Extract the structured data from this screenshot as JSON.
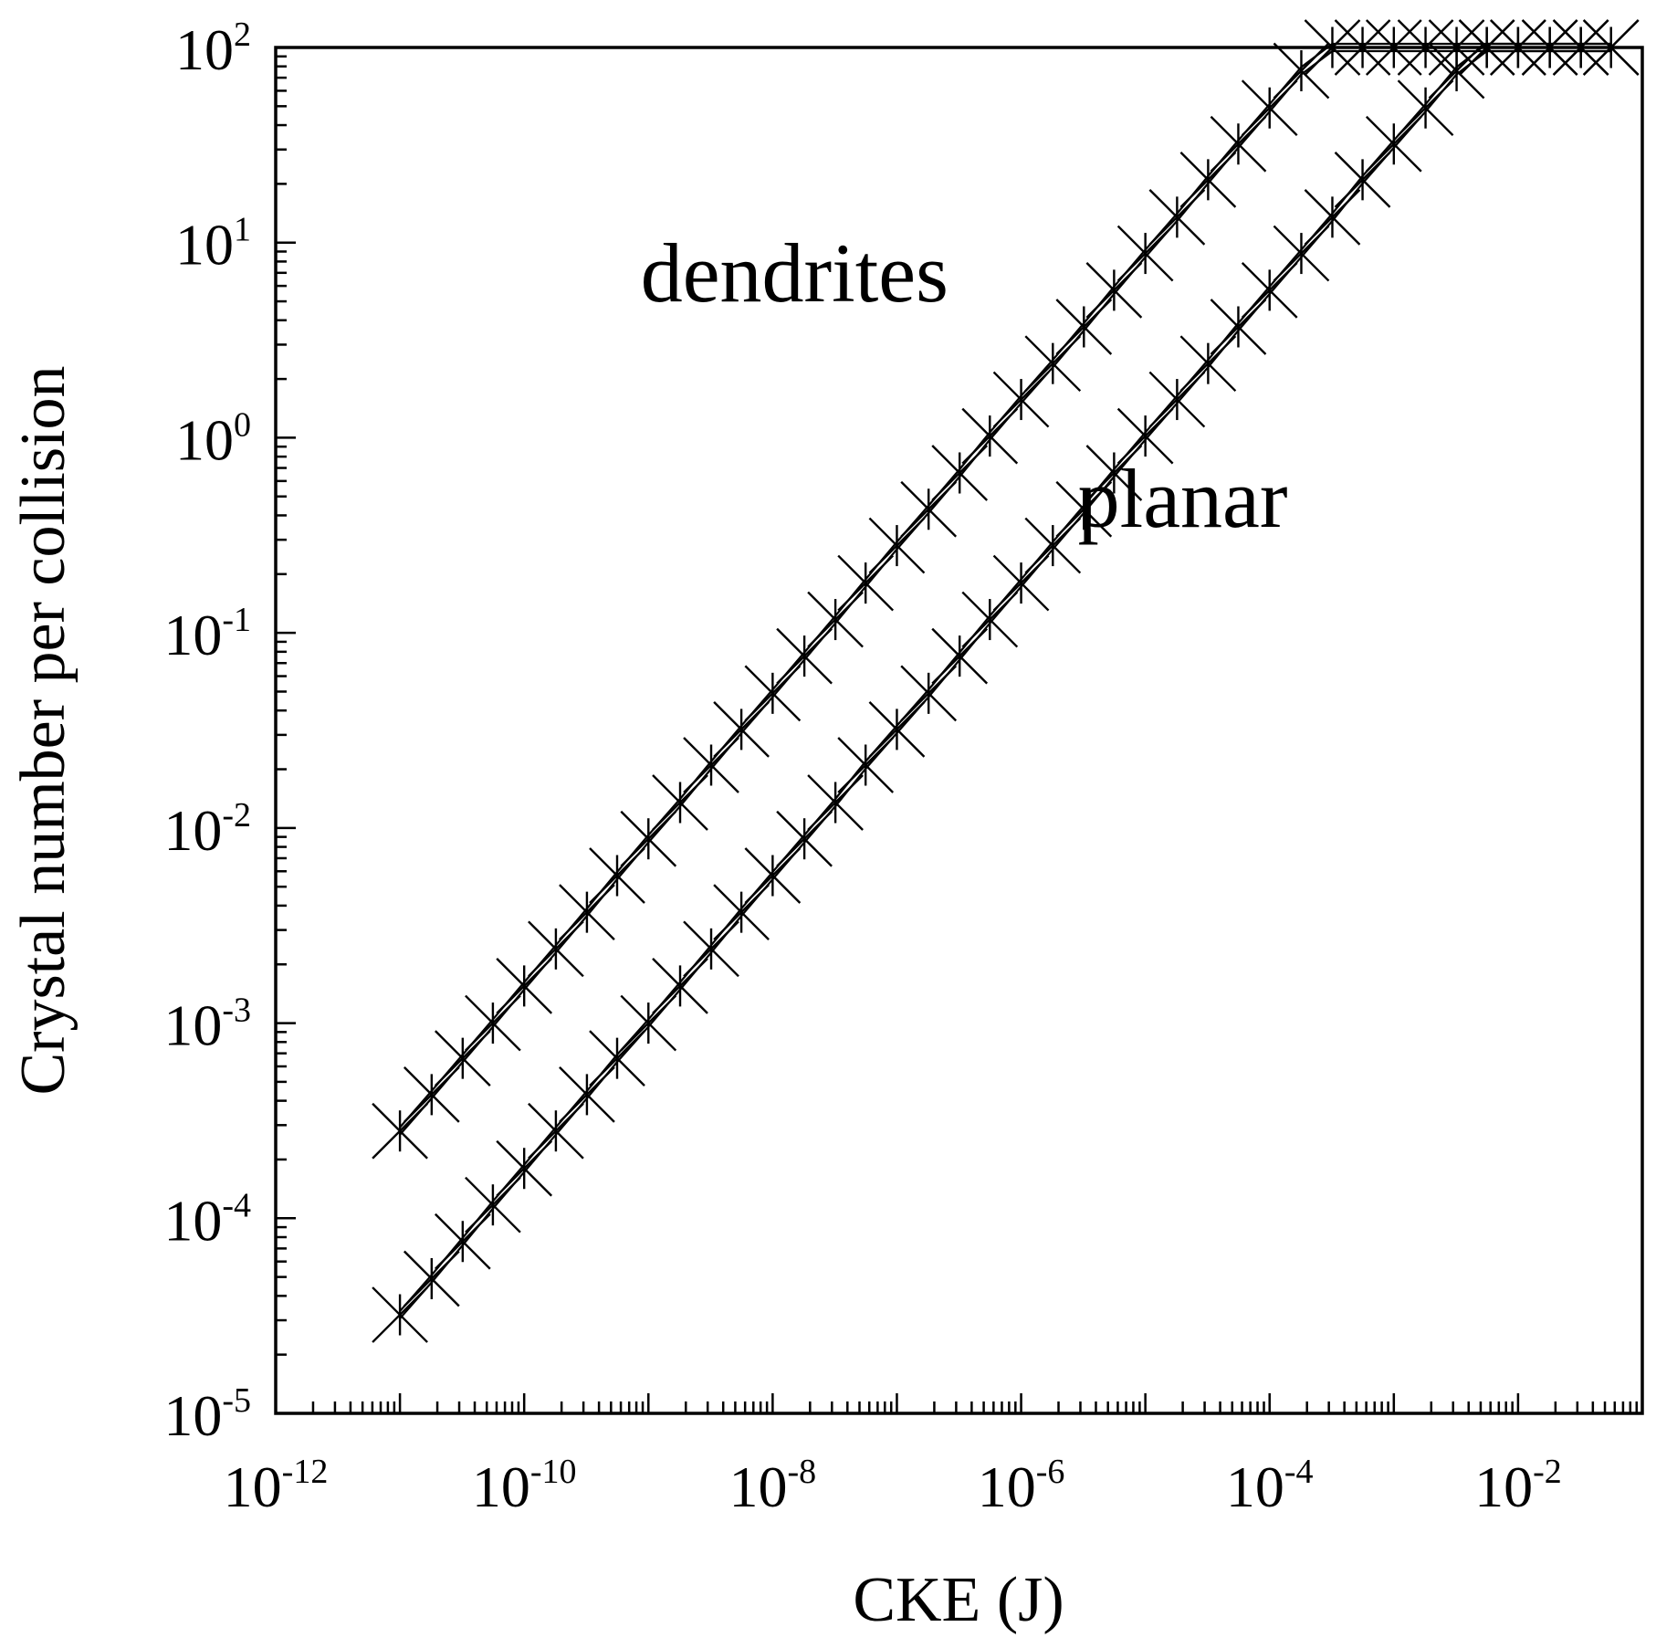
{
  "chart_data": {
    "type": "scatter",
    "title": "",
    "xlabel": "CKE (J)",
    "ylabel": "Crystal number per collision",
    "xscale": "log",
    "yscale": "log",
    "xlim": [
      1e-12,
      0.1
    ],
    "ylim": [
      1e-05,
      100
    ],
    "grid": false,
    "legend": "none",
    "x_ticks": [
      {
        "base": "10",
        "exp": "-12",
        "value": 1e-12
      },
      {
        "base": "10",
        "exp": "-10",
        "value": 1e-10
      },
      {
        "base": "10",
        "exp": "-8",
        "value": 1e-08
      },
      {
        "base": "10",
        "exp": "-6",
        "value": 1e-06
      },
      {
        "base": "10",
        "exp": "-4",
        "value": 0.0001
      },
      {
        "base": "10",
        "exp": "-2",
        "value": 0.01
      }
    ],
    "y_ticks": [
      {
        "base": "10",
        "exp": "2",
        "value": 100
      },
      {
        "base": "10",
        "exp": "1",
        "value": 10
      },
      {
        "base": "10",
        "exp": "0",
        "value": 1
      },
      {
        "base": "10",
        "exp": "-1",
        "value": 0.1
      },
      {
        "base": "10",
        "exp": "-2",
        "value": 0.01
      },
      {
        "base": "10",
        "exp": "-3",
        "value": 0.001
      },
      {
        "base": "10",
        "exp": "-4",
        "value": 0.0001
      },
      {
        "base": "10",
        "exp": "-5",
        "value": 1e-05
      }
    ],
    "series": [
      {
        "name": "dendrites",
        "marker": "x",
        "label_position": [
          1.5e-08,
          5
        ],
        "x": [
          1e-11,
          1.8e-11,
          3.2e-11,
          5.6e-11,
          1e-10,
          1.8e-10,
          3.2e-10,
          5.6e-10,
          1e-09,
          1.8e-09,
          3.2e-09,
          5.6e-09,
          1e-08,
          1.8e-08,
          3.2e-08,
          5.6e-08,
          1e-07,
          1.8e-07,
          3.2e-07,
          5.6e-07,
          1e-06,
          1.8e-06,
          3.2e-06,
          5.6e-06,
          1e-05,
          1.8e-05,
          3.2e-05,
          5.6e-05,
          0.0001,
          0.00018,
          0.00032,
          0.00056,
          0.001,
          0.0018,
          0.0032,
          0.0056,
          0.01,
          0.018,
          0.032,
          0.056
        ],
        "y": [
          0.00028,
          0.00043,
          0.00066,
          0.001,
          0.00155,
          0.0024,
          0.0037,
          0.0057,
          0.0088,
          0.0135,
          0.021,
          0.032,
          0.049,
          0.076,
          0.117,
          0.18,
          0.28,
          0.43,
          0.66,
          1.02,
          1.57,
          2.4,
          3.7,
          5.7,
          8.8,
          13.5,
          21,
          32,
          49,
          76,
          100,
          100,
          100,
          100,
          100,
          100,
          100,
          100,
          100,
          100
        ]
      },
      {
        "name": "planar",
        "marker": "x",
        "label_position": [
          2e-05,
          0.35
        ],
        "x": [
          1e-11,
          1.8e-11,
          3.2e-11,
          5.6e-11,
          1e-10,
          1.8e-10,
          3.2e-10,
          5.6e-10,
          1e-09,
          1.8e-09,
          3.2e-09,
          5.6e-09,
          1e-08,
          1.8e-08,
          3.2e-08,
          5.6e-08,
          1e-07,
          1.8e-07,
          3.2e-07,
          5.6e-07,
          1e-06,
          1.8e-06,
          3.2e-06,
          5.6e-06,
          1e-05,
          1.8e-05,
          3.2e-05,
          5.6e-05,
          0.0001,
          0.00018,
          0.00032,
          0.00056,
          0.001,
          0.0018,
          0.0032,
          0.0056,
          0.01,
          0.018,
          0.032,
          0.056
        ],
        "y": [
          3.2e-05,
          4.9e-05,
          7.6e-05,
          0.000117,
          0.00018,
          0.00028,
          0.00043,
          0.00066,
          0.001,
          0.00155,
          0.0024,
          0.0037,
          0.0057,
          0.0088,
          0.0135,
          0.021,
          0.032,
          0.049,
          0.076,
          0.117,
          0.18,
          0.28,
          0.43,
          0.66,
          1.02,
          1.57,
          2.4,
          3.7,
          5.7,
          8.8,
          13.5,
          21,
          32,
          49,
          76,
          100,
          100,
          100,
          100,
          100
        ]
      }
    ]
  }
}
